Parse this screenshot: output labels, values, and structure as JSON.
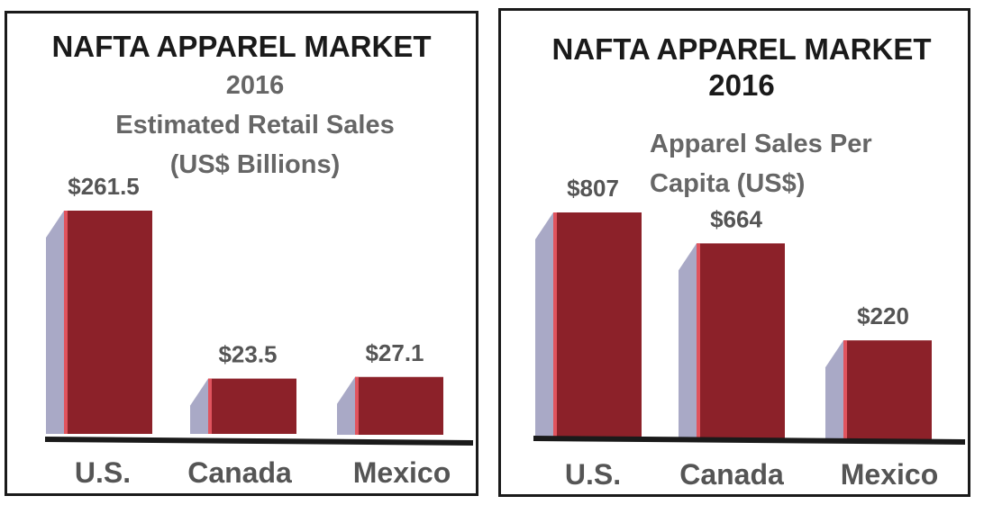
{
  "chart_data": [
    {
      "type": "bar",
      "title": "NAFTA APPAREL MARKET",
      "subtitle": "2016",
      "ylabel_lines": [
        "Estimated Retail Sales",
        "(US$ Billions)"
      ],
      "categories": [
        "U.S.",
        "Canada",
        "Mexico"
      ],
      "values": [
        261.5,
        23.5,
        27.1
      ],
      "value_labels": [
        "$261.5",
        "$23.5",
        "$27.1"
      ],
      "colors": {
        "bar": "#8c2129",
        "bar_edge": "#e0545e",
        "side": "#a9a9c6",
        "baseline": "#1a1a1a"
      }
    },
    {
      "type": "bar",
      "title": "NAFTA APPAREL MARKET",
      "subtitle": "2016",
      "ylabel_lines": [
        "Apparel Sales Per",
        "Capita (US$)"
      ],
      "categories": [
        "U.S.",
        "Canada",
        "Mexico"
      ],
      "values": [
        807,
        664,
        220
      ],
      "value_labels": [
        "$807",
        "$664",
        "$220"
      ],
      "colors": {
        "bar": "#8c2129",
        "bar_edge": "#e0545e",
        "side": "#a9a9c6",
        "baseline": "#1a1a1a"
      }
    }
  ]
}
